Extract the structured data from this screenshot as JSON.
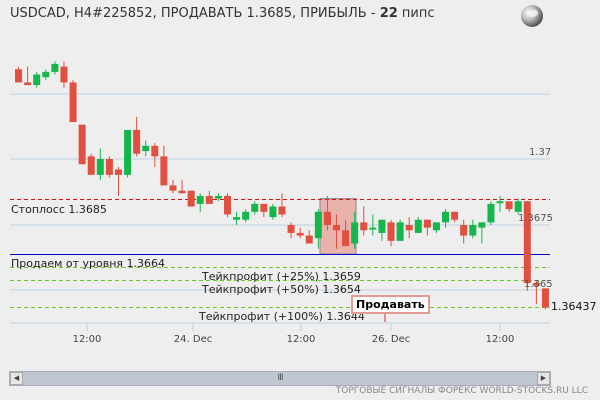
{
  "header": {
    "title_prefix": "USDCAD, H4#225852, ПРОДАВАТЬ 1.3685, ПРИБЫЛЬ - ",
    "profit_value": "22",
    "profit_unit": " пипс",
    "globe_icon": "globe-icon"
  },
  "labels": {
    "stoploss": "Стоплосс 1.3685",
    "sell_from": "Продаем от уровня 1.3664",
    "tp25": "Тейкпрофит (+25%) 1.3659",
    "tp50": "Тейкпрофит (+50%) 1.3654",
    "tp100": "Тейкпрофит (+100%) 1.3644",
    "sell_tag": "Продавать",
    "last_price": "1.36437"
  },
  "y_axis": {
    "ticks": [
      "1.37",
      "1.3675",
      "1.365"
    ]
  },
  "x_axis": {
    "ticks": [
      "12:00",
      "24. Dec",
      "12:00",
      "26. Dec",
      "12:00"
    ]
  },
  "scrollbar": {
    "left_arrow": "◀",
    "right_arrow": "▶",
    "grip": "III"
  },
  "footer": {
    "text": "ТОРГОВЫЕ СИГНАЛЫ ФОРЕКС WORLD-STOCKS.RU LLC"
  },
  "colors": {
    "bull": "#13b74b",
    "bear": "#e04f3f",
    "stoploss": "#dd1111",
    "entry": "#0000cc",
    "takeprofit": "#66cc22",
    "grid": "#c0d0e0",
    "entry_zone": "#e8a8a0"
  },
  "chart_data": {
    "type": "candlestick",
    "title": "USDCAD, H4#225852, ПРОДАВАТЬ 1.3685, ПРИБЫЛЬ - 22 пипс",
    "xlabel": "",
    "ylabel": "",
    "ylim": [
      1.3634,
      1.3746
    ],
    "x_ticks": [
      "12:00",
      "24. Dec",
      "12:00",
      "26. Dec",
      "12:00"
    ],
    "y_ticks": [
      1.37,
      1.3675,
      1.365
    ],
    "levels": [
      {
        "name": "Стоплосс",
        "value": 1.3685,
        "style": "dashed",
        "color": "#dd1111"
      },
      {
        "name": "Продаем от уровня",
        "value": 1.3664,
        "style": "solid",
        "color": "#0000cc"
      },
      {
        "name": "Тейкпрофит (+25%)",
        "value": 1.3659,
        "style": "dashed",
        "color": "#66cc22"
      },
      {
        "name": "Тейкпрофит (+50%)",
        "value": 1.3654,
        "style": "dashed",
        "color": "#66cc22"
      },
      {
        "name": "Тейкпрофит (+100%)",
        "value": 1.3644,
        "style": "dashed",
        "color": "#66cc22"
      }
    ],
    "last_price": 1.36437,
    "candles": [
      {
        "o": 1.3734,
        "h": 1.3735,
        "l": 1.3729,
        "c": 1.3729
      },
      {
        "o": 1.3729,
        "h": 1.3735,
        "l": 1.3728,
        "c": 1.3728
      },
      {
        "o": 1.3728,
        "h": 1.3733,
        "l": 1.3727,
        "c": 1.3732
      },
      {
        "o": 1.3731,
        "h": 1.3734,
        "l": 1.373,
        "c": 1.3733
      },
      {
        "o": 1.3733,
        "h": 1.3737,
        "l": 1.3732,
        "c": 1.3736
      },
      {
        "o": 1.3735,
        "h": 1.3737,
        "l": 1.3727,
        "c": 1.3729
      },
      {
        "o": 1.3729,
        "h": 1.373,
        "l": 1.3714,
        "c": 1.3714
      },
      {
        "o": 1.3713,
        "h": 1.3713,
        "l": 1.3698,
        "c": 1.3698
      },
      {
        "o": 1.3701,
        "h": 1.3702,
        "l": 1.3694,
        "c": 1.3694
      },
      {
        "o": 1.3694,
        "h": 1.3704,
        "l": 1.3692,
        "c": 1.37
      },
      {
        "o": 1.37,
        "h": 1.3701,
        "l": 1.3693,
        "c": 1.3694
      },
      {
        "o": 1.3696,
        "h": 1.3697,
        "l": 1.3686,
        "c": 1.3694
      },
      {
        "o": 1.3694,
        "h": 1.3711,
        "l": 1.3693,
        "c": 1.3711
      },
      {
        "o": 1.3711,
        "h": 1.3716,
        "l": 1.3701,
        "c": 1.3702
      },
      {
        "o": 1.3703,
        "h": 1.3707,
        "l": 1.3701,
        "c": 1.3705
      },
      {
        "o": 1.3705,
        "h": 1.3706,
        "l": 1.3697,
        "c": 1.3701
      },
      {
        "o": 1.3701,
        "h": 1.3705,
        "l": 1.369,
        "c": 1.369
      },
      {
        "o": 1.369,
        "h": 1.3692,
        "l": 1.3687,
        "c": 1.3688
      },
      {
        "o": 1.3688,
        "h": 1.3692,
        "l": 1.3687,
        "c": 1.3687
      },
      {
        "o": 1.3688,
        "h": 1.3688,
        "l": 1.3682,
        "c": 1.3682
      },
      {
        "o": 1.3683,
        "h": 1.3687,
        "l": 1.368,
        "c": 1.3686
      },
      {
        "o": 1.3686,
        "h": 1.3688,
        "l": 1.3683,
        "c": 1.3683
      },
      {
        "o": 1.3685,
        "h": 1.3687,
        "l": 1.3684,
        "c": 1.3686
      },
      {
        "o": 1.3686,
        "h": 1.3687,
        "l": 1.3678,
        "c": 1.3679
      },
      {
        "o": 1.3677,
        "h": 1.368,
        "l": 1.3675,
        "c": 1.3678
      },
      {
        "o": 1.3677,
        "h": 1.3681,
        "l": 1.3676,
        "c": 1.368
      },
      {
        "o": 1.368,
        "h": 1.3684,
        "l": 1.3679,
        "c": 1.3683
      },
      {
        "o": 1.3683,
        "h": 1.3683,
        "l": 1.3678,
        "c": 1.368
      },
      {
        "o": 1.3678,
        "h": 1.3683,
        "l": 1.3677,
        "c": 1.3682
      },
      {
        "o": 1.3682,
        "h": 1.3687,
        "l": 1.3678,
        "c": 1.3679
      },
      {
        "o": 1.3675,
        "h": 1.3676,
        "l": 1.367,
        "c": 1.3672
      },
      {
        "o": 1.3672,
        "h": 1.3674,
        "l": 1.367,
        "c": 1.3671
      },
      {
        "o": 1.3671,
        "h": 1.3673,
        "l": 1.3668,
        "c": 1.3668
      },
      {
        "o": 1.367,
        "h": 1.3681,
        "l": 1.3666,
        "c": 1.368
      },
      {
        "o": 1.368,
        "h": 1.3686,
        "l": 1.3673,
        "c": 1.3675
      },
      {
        "o": 1.3675,
        "h": 1.3679,
        "l": 1.3666,
        "c": 1.3673
      },
      {
        "o": 1.3673,
        "h": 1.3677,
        "l": 1.3667,
        "c": 1.3667
      },
      {
        "o": 1.3668,
        "h": 1.368,
        "l": 1.3666,
        "c": 1.3676
      },
      {
        "o": 1.3676,
        "h": 1.3682,
        "l": 1.3671,
        "c": 1.3673
      },
      {
        "o": 1.3674,
        "h": 1.3679,
        "l": 1.3671,
        "c": 1.3674
      },
      {
        "o": 1.3672,
        "h": 1.3677,
        "l": 1.3669,
        "c": 1.3677
      },
      {
        "o": 1.3676,
        "h": 1.3677,
        "l": 1.3667,
        "c": 1.3669
      },
      {
        "o": 1.3669,
        "h": 1.3677,
        "l": 1.3669,
        "c": 1.3676
      },
      {
        "o": 1.3675,
        "h": 1.3678,
        "l": 1.367,
        "c": 1.3673
      },
      {
        "o": 1.3672,
        "h": 1.3678,
        "l": 1.3672,
        "c": 1.3677
      },
      {
        "o": 1.3677,
        "h": 1.3677,
        "l": 1.3671,
        "c": 1.3674
      },
      {
        "o": 1.3673,
        "h": 1.3675,
        "l": 1.3672,
        "c": 1.3676
      },
      {
        "o": 1.3676,
        "h": 1.3681,
        "l": 1.3674,
        "c": 1.368
      },
      {
        "o": 1.368,
        "h": 1.368,
        "l": 1.3676,
        "c": 1.3677
      },
      {
        "o": 1.3675,
        "h": 1.3677,
        "l": 1.3668,
        "c": 1.3671
      },
      {
        "o": 1.3671,
        "h": 1.3677,
        "l": 1.367,
        "c": 1.3675
      },
      {
        "o": 1.3674,
        "h": 1.3676,
        "l": 1.3668,
        "c": 1.3676
      },
      {
        "o": 1.3676,
        "h": 1.3684,
        "l": 1.3675,
        "c": 1.3683
      },
      {
        "o": 1.3684,
        "h": 1.3686,
        "l": 1.368,
        "c": 1.3684
      },
      {
        "o": 1.3684,
        "h": 1.3684,
        "l": 1.368,
        "c": 1.3681
      },
      {
        "o": 1.368,
        "h": 1.3685,
        "l": 1.3679,
        "c": 1.3684
      },
      {
        "o": 1.3684,
        "h": 1.3684,
        "l": 1.365,
        "c": 1.3653
      },
      {
        "o": 1.3653,
        "h": 1.3654,
        "l": 1.3645,
        "c": 1.3652
      },
      {
        "o": 1.3651,
        "h": 1.3651,
        "l": 1.3643,
        "c": 1.36437
      }
    ]
  }
}
